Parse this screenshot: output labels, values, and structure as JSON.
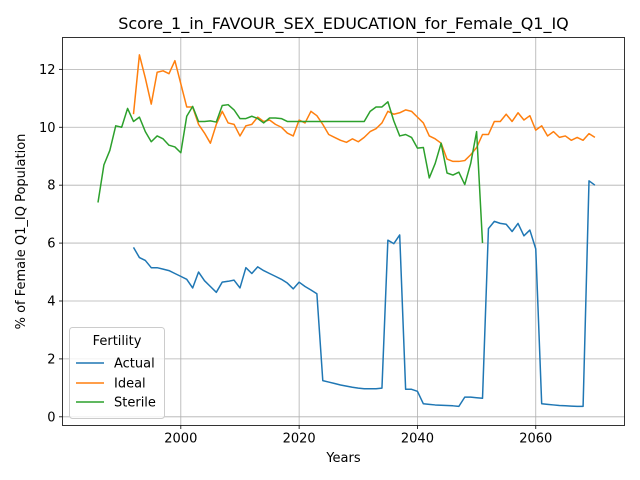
{
  "chart_data": {
    "type": "line",
    "title": "Score_1_in_FAVOUR_SEX_EDUCATION_for_Female_Q1_IQ",
    "xlabel": "Years",
    "ylabel": "% of Female Q1_IQ Population",
    "xlim": [
      1980,
      2075
    ],
    "ylim": [
      -0.3,
      13.1
    ],
    "xticks": [
      2000,
      2020,
      2040,
      2060
    ],
    "yticks": [
      0,
      2,
      4,
      6,
      8,
      10,
      12
    ],
    "grid": true,
    "legend": {
      "title": "Fertility",
      "position": "lower-left"
    },
    "series": [
      {
        "name": "Actual",
        "color": "#1f77b4",
        "x": [
          1992,
          1993,
          1994,
          1995,
          1996,
          1997,
          1998,
          1999,
          2000,
          2001,
          2002,
          2003,
          2004,
          2005,
          2006,
          2007,
          2008,
          2009,
          2010,
          2011,
          2012,
          2013,
          2014,
          2015,
          2016,
          2017,
          2018,
          2019,
          2020,
          2021,
          2022,
          2023,
          2024,
          2025,
          2026,
          2027,
          2028,
          2029,
          2030,
          2031,
          2032,
          2033,
          2034,
          2035,
          2036,
          2037,
          2038,
          2039,
          2040,
          2041,
          2042,
          2043,
          2044,
          2045,
          2046,
          2047,
          2048,
          2049,
          2050,
          2051,
          2052,
          2053,
          2054,
          2055,
          2056,
          2057,
          2058,
          2059,
          2060,
          2061,
          2062,
          2063,
          2064,
          2065,
          2066,
          2067,
          2068,
          2069,
          2070
        ],
        "values": [
          5.85,
          5.5,
          5.4,
          5.15,
          5.15,
          5.1,
          5.05,
          4.95,
          4.85,
          4.75,
          4.45,
          5.0,
          4.7,
          4.5,
          4.3,
          4.65,
          4.68,
          4.72,
          4.45,
          5.15,
          4.95,
          5.18,
          5.05,
          4.95,
          4.85,
          4.75,
          4.62,
          4.42,
          4.65,
          4.5,
          4.38,
          4.25,
          1.25,
          1.2,
          1.15,
          1.1,
          1.06,
          1.02,
          0.99,
          0.97,
          0.97,
          0.97,
          0.99,
          6.1,
          5.98,
          6.28,
          0.95,
          0.95,
          0.88,
          0.45,
          0.43,
          0.41,
          0.4,
          0.39,
          0.38,
          0.36,
          0.68,
          0.68,
          0.66,
          0.64,
          6.5,
          6.75,
          6.68,
          6.65,
          6.4,
          6.68,
          6.25,
          6.45,
          5.8,
          0.45,
          0.43,
          0.41,
          0.39,
          0.38,
          0.37,
          0.36,
          0.36,
          8.15,
          8.0
        ]
      },
      {
        "name": "Ideal",
        "color": "#ff7f0e",
        "x": [
          1992,
          1993,
          1994,
          1995,
          1996,
          1997,
          1998,
          1999,
          2000,
          2001,
          2002,
          2003,
          2004,
          2005,
          2006,
          2007,
          2008,
          2009,
          2010,
          2011,
          2012,
          2013,
          2014,
          2015,
          2016,
          2017,
          2018,
          2019,
          2020,
          2021,
          2022,
          2023,
          2024,
          2025,
          2026,
          2027,
          2028,
          2029,
          2030,
          2031,
          2032,
          2033,
          2034,
          2035,
          2036,
          2037,
          2038,
          2039,
          2040,
          2041,
          2042,
          2043,
          2044,
          2045,
          2046,
          2047,
          2048,
          2049,
          2050,
          2051,
          2052,
          2053,
          2054,
          2055,
          2056,
          2057,
          2058,
          2059,
          2060,
          2061,
          2062,
          2063,
          2064,
          2065,
          2066,
          2067,
          2068,
          2069,
          2070
        ],
        "values": [
          10.45,
          12.5,
          11.7,
          10.8,
          11.9,
          11.95,
          11.85,
          12.3,
          11.5,
          10.7,
          10.7,
          10.1,
          9.8,
          9.45,
          10.1,
          10.55,
          10.15,
          10.1,
          9.7,
          10.05,
          10.1,
          10.35,
          10.2,
          10.25,
          10.1,
          10.0,
          9.8,
          9.7,
          10.25,
          10.15,
          10.55,
          10.4,
          10.1,
          9.75,
          9.65,
          9.55,
          9.48,
          9.6,
          9.5,
          9.65,
          9.85,
          9.95,
          10.15,
          10.55,
          10.45,
          10.5,
          10.6,
          10.55,
          10.35,
          10.15,
          9.7,
          9.6,
          9.45,
          8.9,
          8.82,
          8.82,
          8.85,
          9.05,
          9.3,
          9.75,
          9.75,
          10.2,
          10.2,
          10.45,
          10.2,
          10.5,
          10.25,
          10.4,
          9.9,
          10.05,
          9.7,
          9.85,
          9.65,
          9.7,
          9.55,
          9.65,
          9.55,
          9.78,
          9.65
        ]
      },
      {
        "name": "Sterile",
        "color": "#2ca02c",
        "x": [
          1986,
          1987,
          1988,
          1989,
          1990,
          1991,
          1992,
          1993,
          1994,
          1995,
          1996,
          1997,
          1998,
          1999,
          2000,
          2001,
          2002,
          2003,
          2004,
          2005,
          2006,
          2007,
          2008,
          2009,
          2010,
          2011,
          2012,
          2013,
          2014,
          2015,
          2016,
          2017,
          2018,
          2019,
          2020,
          2021,
          2022,
          2023,
          2024,
          2025,
          2026,
          2027,
          2028,
          2029,
          2030,
          2031,
          2032,
          2033,
          2034,
          2035,
          2036,
          2037,
          2038,
          2039,
          2040,
          2041,
          2042,
          2043,
          2044,
          2045,
          2046,
          2047,
          2048,
          2049,
          2050,
          2051
        ],
        "values": [
          7.4,
          8.7,
          9.2,
          10.05,
          10.0,
          10.65,
          10.2,
          10.35,
          9.85,
          9.5,
          9.7,
          9.6,
          9.38,
          9.32,
          9.12,
          10.38,
          10.72,
          10.2,
          10.2,
          10.22,
          10.18,
          10.75,
          10.78,
          10.6,
          10.3,
          10.3,
          10.38,
          10.3,
          10.15,
          10.32,
          10.32,
          10.3,
          10.2,
          10.2,
          10.2,
          10.2,
          10.2,
          10.2,
          10.2,
          10.2,
          10.2,
          10.2,
          10.2,
          10.2,
          10.2,
          10.2,
          10.55,
          10.7,
          10.7,
          10.88,
          10.22,
          9.7,
          9.75,
          9.65,
          9.28,
          9.3,
          8.25,
          8.75,
          9.45,
          8.42,
          8.35,
          8.45,
          8.02,
          8.75,
          9.85,
          6.0
        ]
      }
    ]
  }
}
